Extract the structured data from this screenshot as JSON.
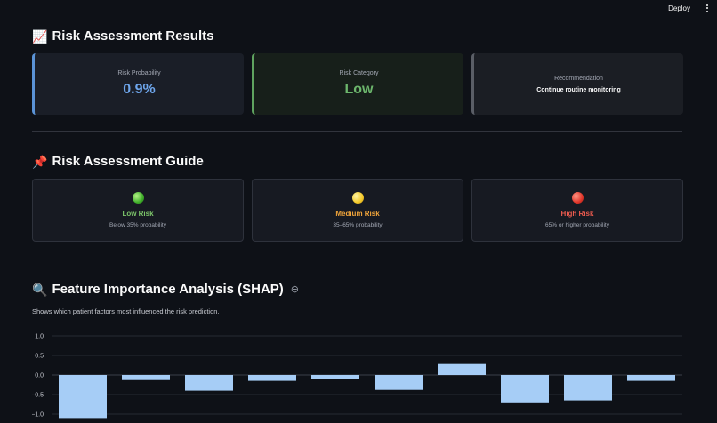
{
  "header": {
    "deploy_label": "Deploy",
    "menu_icon": "kebab-menu-icon"
  },
  "results": {
    "icon": "📈",
    "title": "Risk Assessment Results",
    "probability_label": "Risk Probability",
    "probability_value": "0.9%",
    "category_label": "Risk Category",
    "category_value": "Low",
    "recommendation_label": "Recommendation",
    "recommendation_value": "Continue routine monitoring",
    "colors": {
      "probability": "#6ea6ec",
      "category": "#6cb66c"
    }
  },
  "guide": {
    "icon": "📌",
    "title": "Risk Assessment Guide",
    "items": [
      {
        "title": "Low Risk",
        "desc": "Below 35% probability",
        "color": "#7cc46a"
      },
      {
        "title": "Medium Risk",
        "desc": "35–65% probability",
        "color": "#f0a43a"
      },
      {
        "title": "High Risk",
        "desc": "65% or higher probability",
        "color": "#ea5a4e"
      }
    ]
  },
  "shap": {
    "icon": "🔍",
    "title": "Feature Importance Analysis (SHAP)",
    "link_icon": "⊖",
    "subtitle": "Shows which patient factors most influenced the risk prediction."
  },
  "chart_data": {
    "type": "bar",
    "title": "",
    "xlabel": "",
    "ylabel": "",
    "values": [
      -1.1,
      -0.13,
      -0.4,
      -0.15,
      -0.1,
      -0.38,
      0.28,
      -0.7,
      -0.65,
      -0.15
    ],
    "yticks": [
      "1.0",
      "0.5",
      "0.0",
      "−0.5",
      "−1.0"
    ],
    "ytick_values": [
      1.0,
      0.5,
      0.0,
      -0.5,
      -1.0
    ],
    "ylim": [
      -1.1,
      1.0
    ],
    "grid": true,
    "bar_color": "#a6cdf6"
  }
}
